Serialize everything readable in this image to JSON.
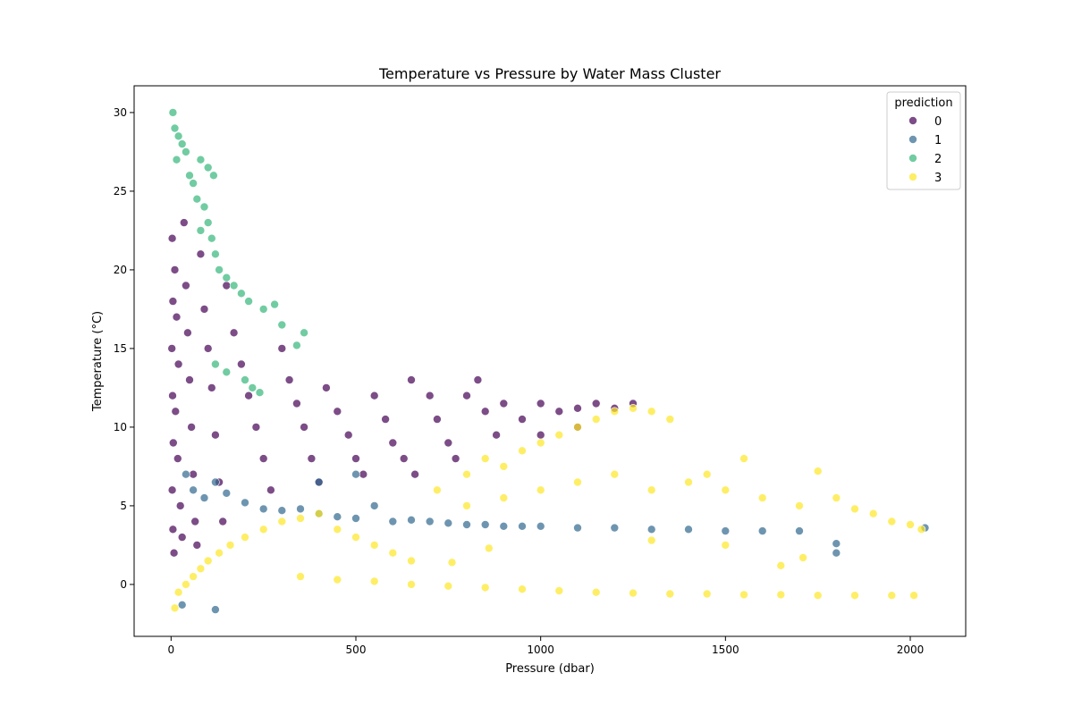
{
  "chart_data": {
    "type": "scatter",
    "title": "Temperature vs Pressure by Water Mass Cluster",
    "xlabel": "Pressure (dbar)",
    "ylabel": "Temperature (°C)",
    "xlim": [
      -100,
      2150
    ],
    "ylim": [
      -3.3,
      31.7
    ],
    "xticks": [
      0,
      500,
      1000,
      1500,
      2000
    ],
    "xtick_labels": [
      "0",
      "500",
      "1000",
      "1500",
      "2000"
    ],
    "yticks": [
      0,
      5,
      10,
      15,
      20,
      25,
      30
    ],
    "ytick_labels": [
      "0",
      "5",
      "10",
      "15",
      "20",
      "25",
      "30"
    ],
    "grid": false,
    "legend": {
      "title": "prediction",
      "placement": "top-right",
      "entries": [
        "0",
        "1",
        "2",
        "3"
      ]
    },
    "series": [
      {
        "name": "0",
        "color": "#440154",
        "points": [
          [
            3,
            22
          ],
          [
            5,
            18
          ],
          [
            2,
            15
          ],
          [
            4,
            12
          ],
          [
            6,
            9
          ],
          [
            3,
            6
          ],
          [
            5,
            3.5
          ],
          [
            8,
            2
          ],
          [
            10,
            20
          ],
          [
            15,
            17
          ],
          [
            20,
            14
          ],
          [
            12,
            11
          ],
          [
            18,
            8
          ],
          [
            25,
            5
          ],
          [
            30,
            3
          ],
          [
            35,
            23
          ],
          [
            40,
            19
          ],
          [
            45,
            16
          ],
          [
            50,
            13
          ],
          [
            55,
            10
          ],
          [
            60,
            7
          ],
          [
            65,
            4
          ],
          [
            70,
            2.5
          ],
          [
            80,
            21
          ],
          [
            90,
            17.5
          ],
          [
            100,
            15
          ],
          [
            110,
            12.5
          ],
          [
            120,
            9.5
          ],
          [
            130,
            6.5
          ],
          [
            140,
            4
          ],
          [
            150,
            19
          ],
          [
            170,
            16
          ],
          [
            190,
            14
          ],
          [
            210,
            12
          ],
          [
            230,
            10
          ],
          [
            250,
            8
          ],
          [
            270,
            6
          ],
          [
            300,
            15
          ],
          [
            320,
            13
          ],
          [
            340,
            11.5
          ],
          [
            360,
            10
          ],
          [
            380,
            8
          ],
          [
            400,
            6.5
          ],
          [
            420,
            12.5
          ],
          [
            450,
            11
          ],
          [
            480,
            9.5
          ],
          [
            500,
            8
          ],
          [
            520,
            7
          ],
          [
            550,
            12
          ],
          [
            580,
            10.5
          ],
          [
            600,
            9
          ],
          [
            630,
            8
          ],
          [
            660,
            7
          ],
          [
            650,
            13
          ],
          [
            700,
            12
          ],
          [
            720,
            10.5
          ],
          [
            750,
            9
          ],
          [
            770,
            8
          ],
          [
            800,
            12
          ],
          [
            830,
            13
          ],
          [
            850,
            11
          ],
          [
            880,
            9.5
          ],
          [
            900,
            11.5
          ],
          [
            950,
            10.5
          ],
          [
            1000,
            11.5
          ],
          [
            1050,
            11
          ],
          [
            1100,
            11.2
          ],
          [
            1150,
            11.5
          ],
          [
            1200,
            11.2
          ],
          [
            1250,
            11.5
          ],
          [
            1100,
            10
          ],
          [
            1000,
            9.5
          ]
        ]
      },
      {
        "name": "1",
        "color": "#31688e",
        "points": [
          [
            40,
            7
          ],
          [
            60,
            6
          ],
          [
            90,
            5.5
          ],
          [
            120,
            6.5
          ],
          [
            150,
            5.8
          ],
          [
            200,
            5.2
          ],
          [
            250,
            4.8
          ],
          [
            300,
            4.7
          ],
          [
            350,
            4.8
          ],
          [
            400,
            4.5
          ],
          [
            450,
            4.3
          ],
          [
            500,
            4.2
          ],
          [
            550,
            5
          ],
          [
            600,
            4
          ],
          [
            650,
            4.1
          ],
          [
            700,
            4
          ],
          [
            750,
            3.9
          ],
          [
            800,
            3.8
          ],
          [
            850,
            3.8
          ],
          [
            900,
            3.7
          ],
          [
            950,
            3.7
          ],
          [
            1000,
            3.7
          ],
          [
            1100,
            3.6
          ],
          [
            1200,
            3.6
          ],
          [
            1300,
            3.5
          ],
          [
            1400,
            3.5
          ],
          [
            1500,
            3.4
          ],
          [
            1600,
            3.4
          ],
          [
            1700,
            3.4
          ],
          [
            1800,
            2.6
          ],
          [
            1800,
            2
          ],
          [
            2040,
            3.6
          ],
          [
            30,
            -1.3
          ],
          [
            120,
            -1.6
          ],
          [
            400,
            6.5
          ],
          [
            500,
            7
          ]
        ]
      },
      {
        "name": "2",
        "color": "#35b779",
        "points": [
          [
            5,
            30
          ],
          [
            10,
            29
          ],
          [
            20,
            28.5
          ],
          [
            30,
            28
          ],
          [
            15,
            27
          ],
          [
            40,
            27.5
          ],
          [
            50,
            26
          ],
          [
            60,
            25.5
          ],
          [
            70,
            24.5
          ],
          [
            80,
            27
          ],
          [
            100,
            26.5
          ],
          [
            115,
            26
          ],
          [
            90,
            24
          ],
          [
            100,
            23
          ],
          [
            110,
            22
          ],
          [
            120,
            21
          ],
          [
            80,
            22.5
          ],
          [
            130,
            20
          ],
          [
            150,
            19.5
          ],
          [
            170,
            19
          ],
          [
            190,
            18.5
          ],
          [
            210,
            18
          ],
          [
            250,
            17.5
          ],
          [
            280,
            17.8
          ],
          [
            300,
            16.5
          ],
          [
            340,
            15.2
          ],
          [
            360,
            16
          ],
          [
            200,
            13
          ],
          [
            220,
            12.5
          ],
          [
            240,
            12.2
          ],
          [
            120,
            14
          ],
          [
            150,
            13.5
          ]
        ]
      },
      {
        "name": "3",
        "color": "#fde725",
        "points": [
          [
            10,
            -1.5
          ],
          [
            20,
            -0.5
          ],
          [
            40,
            0
          ],
          [
            60,
            0.5
          ],
          [
            80,
            1
          ],
          [
            100,
            1.5
          ],
          [
            130,
            2
          ],
          [
            160,
            2.5
          ],
          [
            200,
            3
          ],
          [
            250,
            3.5
          ],
          [
            300,
            4
          ],
          [
            350,
            4.2
          ],
          [
            400,
            4.5
          ],
          [
            450,
            3.5
          ],
          [
            500,
            3
          ],
          [
            550,
            2.5
          ],
          [
            600,
            2
          ],
          [
            650,
            1.5
          ],
          [
            350,
            0.5
          ],
          [
            450,
            0.3
          ],
          [
            550,
            0.2
          ],
          [
            650,
            0
          ],
          [
            750,
            -0.1
          ],
          [
            850,
            -0.2
          ],
          [
            950,
            -0.3
          ],
          [
            1050,
            -0.4
          ],
          [
            1150,
            -0.5
          ],
          [
            1250,
            -0.55
          ],
          [
            1350,
            -0.6
          ],
          [
            1450,
            -0.6
          ],
          [
            1550,
            -0.65
          ],
          [
            1650,
            -0.65
          ],
          [
            1750,
            -0.7
          ],
          [
            1850,
            -0.7
          ],
          [
            1950,
            -0.7
          ],
          [
            2010,
            -0.7
          ],
          [
            720,
            6
          ],
          [
            800,
            7
          ],
          [
            850,
            8
          ],
          [
            900,
            7.5
          ],
          [
            950,
            8.5
          ],
          [
            1000,
            9
          ],
          [
            1050,
            9.5
          ],
          [
            1100,
            10
          ],
          [
            1150,
            10.5
          ],
          [
            1200,
            11
          ],
          [
            1250,
            11.2
          ],
          [
            1300,
            11
          ],
          [
            1350,
            10.5
          ],
          [
            800,
            5
          ],
          [
            900,
            5.5
          ],
          [
            1000,
            6
          ],
          [
            1100,
            6.5
          ],
          [
            1200,
            7
          ],
          [
            1300,
            6
          ],
          [
            1400,
            6.5
          ],
          [
            1450,
            7
          ],
          [
            1500,
            6
          ],
          [
            1550,
            8
          ],
          [
            1600,
            5.5
          ],
          [
            1700,
            5
          ],
          [
            1750,
            7.2
          ],
          [
            1800,
            5.5
          ],
          [
            1850,
            4.8
          ],
          [
            1900,
            4.5
          ],
          [
            1950,
            4
          ],
          [
            2000,
            3.8
          ],
          [
            2030,
            3.5
          ],
          [
            1650,
            1.2
          ],
          [
            1300,
            2.8
          ],
          [
            1500,
            2.5
          ],
          [
            1710,
            1.7
          ],
          [
            860,
            2.3
          ],
          [
            760,
            1.4
          ]
        ]
      }
    ]
  }
}
